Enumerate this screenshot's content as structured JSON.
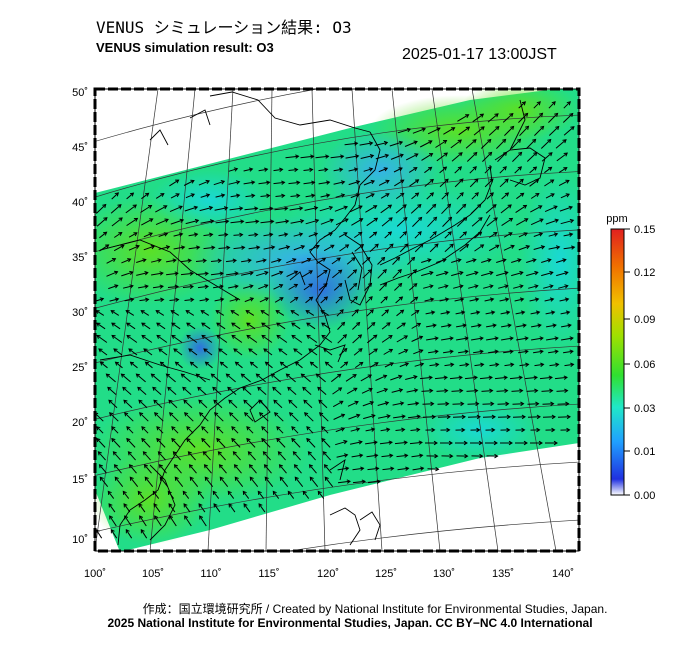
{
  "header": {
    "title_jp": "VENUS シミュレーション結果: O3",
    "title_en": "VENUS simulation result: O3",
    "timestamp": "2025-01-17 13:00JST"
  },
  "map": {
    "lat_labels": [
      "50˚",
      "45˚",
      "40˚",
      "35˚",
      "30˚",
      "25˚",
      "20˚",
      "15˚",
      "10˚"
    ],
    "lon_labels": [
      "100˚",
      "105˚",
      "110˚",
      "115˚",
      "120˚",
      "125˚",
      "130˚",
      "135˚",
      "140˚"
    ]
  },
  "colorbar": {
    "unit": "ppm",
    "ticks": [
      "0.15",
      "0.12",
      "0.09",
      "0.06",
      "0.03",
      "0.01",
      "0.00"
    ],
    "colors": [
      "#ffffff",
      "#2030e0",
      "#20a0ff",
      "#20e8c8",
      "#30e030",
      "#a0e000",
      "#f0c000",
      "#f07000",
      "#e02020"
    ]
  },
  "footer": {
    "credit_line": "作成：国立環境研究所 / Created by National Institute for Environmental Studies, Japan.",
    "license_line": "2025 National Institute for Environmental Studies, Japan. CC BY−NC 4.0 International"
  }
}
